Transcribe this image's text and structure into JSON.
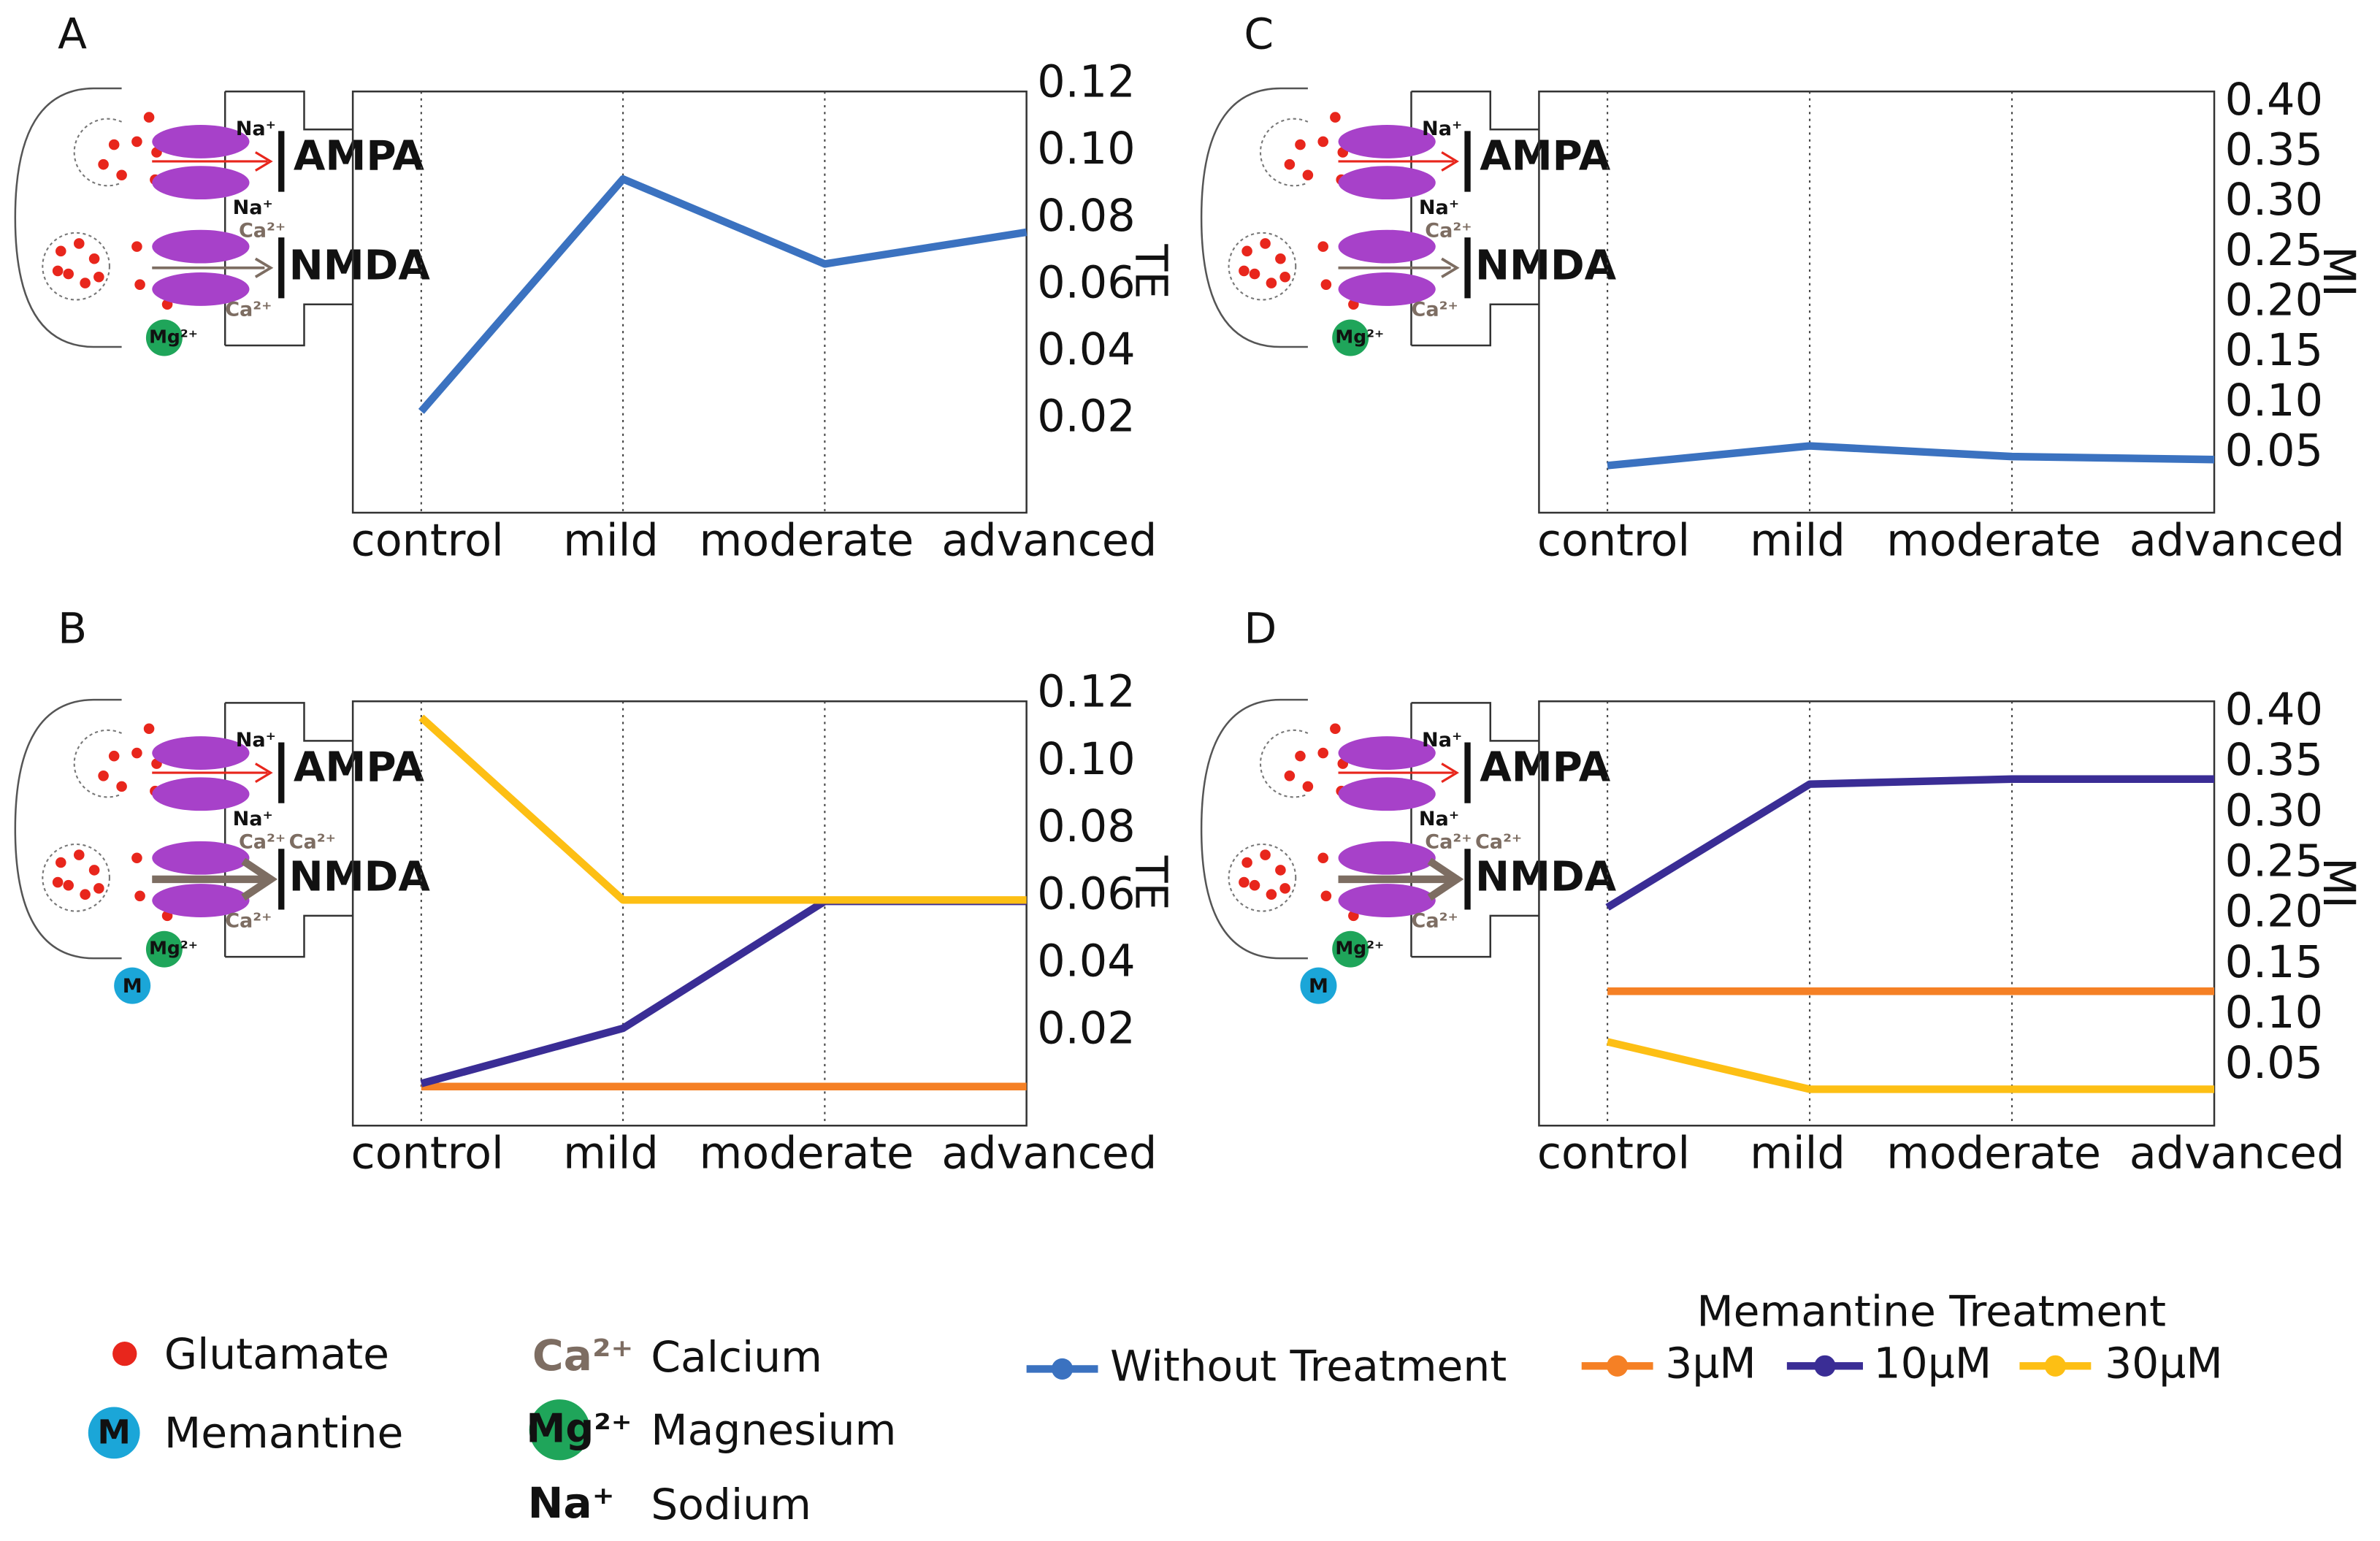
{
  "chart_data": [
    {
      "type": "line",
      "title": "A",
      "y_label": "TE",
      "categories": [
        "control",
        "mild",
        "moderate",
        "advanced"
      ],
      "ylim": [
        -0.008,
        0.118
      ],
      "yticks": [
        0.02,
        0.04,
        0.06,
        0.08,
        {
          "value": 0.1,
          "label": "0.10"
        },
        0.12
      ],
      "grid": true,
      "series": [
        {
          "name": "Without Treatment",
          "color": "#3b72c0",
          "values": [
            0.0223,
            0.0918,
            0.0664,
            0.0759
          ]
        }
      ]
    },
    {
      "type": "line",
      "title": "B",
      "y_label": "TE",
      "categories": [
        "control",
        "mild",
        "moderate",
        "advanced"
      ],
      "ylim": [
        -0.008,
        0.118
      ],
      "yticks": [
        0.02,
        0.04,
        0.06,
        0.08,
        {
          "value": 0.1,
          "label": "0.10"
        },
        0.12
      ],
      "grid": true,
      "series": [
        {
          "name": "3µM",
          "color": "#f58025",
          "values": [
            0.0036,
            0.0036,
            0.0036,
            0.0036
          ]
        },
        {
          "name": "10µM",
          "color": "#3a2d95",
          "values": [
            0.0045,
            0.0209,
            0.0586,
            0.0586
          ]
        },
        {
          "name": "30µM",
          "color": "#fdbf14",
          "values": [
            0.1132,
            0.059,
            0.059,
            0.059
          ]
        }
      ]
    },
    {
      "type": "line",
      "title": "C",
      "y_label": "MI",
      "categories": [
        "control",
        "mild",
        "moderate",
        "advanced"
      ],
      "ylim": [
        -0.009,
        0.411
      ],
      "yticks": [
        0.05,
        {
          "value": 0.1,
          "label": "0.10"
        },
        0.15,
        {
          "value": 0.2,
          "label": "0.20"
        },
        0.25,
        {
          "value": 0.3,
          "label": "0.30"
        },
        0.35,
        {
          "value": 0.4,
          "label": "0.40"
        }
      ],
      "grid": true,
      "series": [
        {
          "name": "Without Treatment",
          "color": "#3b72c0",
          "values": [
            0.038,
            0.0576,
            0.047,
            0.044
          ]
        }
      ]
    },
    {
      "type": "line",
      "title": "D",
      "y_label": "MI",
      "categories": [
        "control",
        "mild",
        "moderate",
        "advanced"
      ],
      "ylim": [
        -0.009,
        0.411
      ],
      "yticks": [
        0.05,
        {
          "value": 0.1,
          "label": "0.10"
        },
        0.15,
        {
          "value": 0.2,
          "label": "0.20"
        },
        0.25,
        {
          "value": 0.3,
          "label": "0.30"
        },
        0.35,
        {
          "value": 0.4,
          "label": "0.40"
        }
      ],
      "grid": true,
      "series": [
        {
          "name": "3µM",
          "color": "#f58025",
          "values": [
            0.124,
            0.124,
            0.124,
            0.124
          ]
        },
        {
          "name": "10µM",
          "color": "#3a2d95",
          "values": [
            0.207,
            0.329,
            0.334,
            0.334
          ]
        },
        {
          "name": "30µM",
          "color": "#fdbf14",
          "values": [
            0.074,
            0.027,
            0.027,
            0.027
          ]
        }
      ]
    }
  ],
  "diagram_labels": {
    "ampa": "AMPA",
    "nmda": "NMDA",
    "sodium": "Na⁺",
    "calcium": "Ca²⁺",
    "magnesium": "Mg²⁺",
    "memantine": "M"
  },
  "legend": {
    "glutamate": "Glutamate",
    "memantine": "Memantine",
    "calcium": "Calcium",
    "magnesium": "Magnesium",
    "sodium": "Sodium",
    "treatment_title": "Memantine Treatment"
  }
}
